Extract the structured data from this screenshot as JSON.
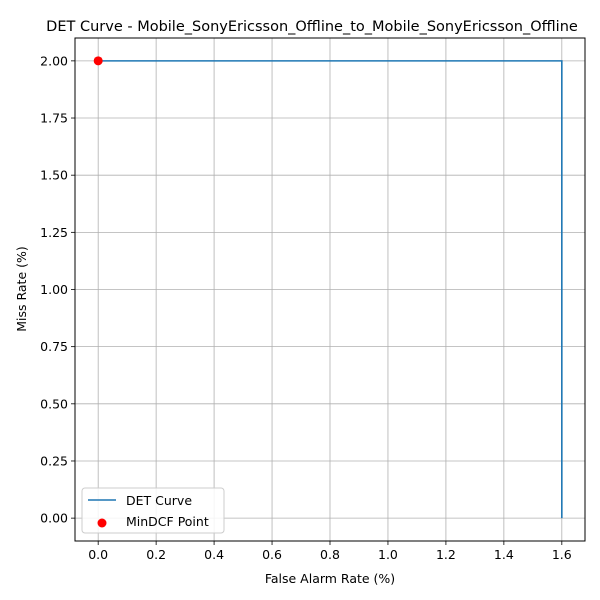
{
  "chart_data": {
    "type": "line",
    "title": "DET Curve - Mobile_SonyEricsson_Offline_to_Mobile_SonyEricsson_Offline",
    "xlabel": "False Alarm Rate (%)",
    "ylabel": "Miss Rate (%)",
    "xlim": [
      -0.08,
      1.68
    ],
    "ylim": [
      -0.1,
      2.1
    ],
    "xticks": [
      0.0,
      0.2,
      0.4,
      0.6,
      0.8,
      1.0,
      1.2,
      1.4,
      1.6
    ],
    "xtick_labels": [
      "0.0",
      "0.2",
      "0.4",
      "0.6",
      "0.8",
      "1.0",
      "1.2",
      "1.4",
      "1.6"
    ],
    "yticks": [
      0.0,
      0.25,
      0.5,
      0.75,
      1.0,
      1.25,
      1.5,
      1.75,
      2.0
    ],
    "ytick_labels": [
      "0.00",
      "0.25",
      "0.50",
      "0.75",
      "1.00",
      "1.25",
      "1.50",
      "1.75",
      "2.00"
    ],
    "grid": true,
    "legend_position": "lower-left",
    "series": [
      {
        "name": "DET Curve",
        "kind": "line",
        "color": "#1f77b4",
        "x": [
          0.0,
          1.6,
          1.6
        ],
        "y": [
          2.0,
          2.0,
          0.0
        ]
      },
      {
        "name": "MinDCF Point",
        "kind": "scatter",
        "color": "#ff0000",
        "x": [
          0.0
        ],
        "y": [
          2.0
        ]
      }
    ]
  }
}
